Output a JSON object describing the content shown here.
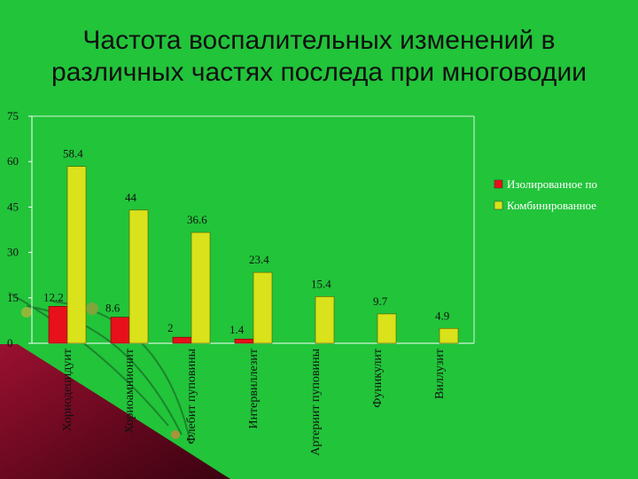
{
  "slide": {
    "title_line1": "Частота воспалительных изменений в",
    "title_line2": "различных частях последа при многоводии"
  },
  "chart_data": {
    "type": "bar",
    "categories": [
      "Хориодецидуит",
      "Хориоамнионит",
      "Флебит пуповины",
      "Интервиллезит",
      "Артериит пуповины",
      "Фуникулит",
      "Виллузит"
    ],
    "series": [
      {
        "name": "Изолированное по",
        "color": "#e8101a",
        "values": [
          12.2,
          8.6,
          2,
          1.4,
          null,
          null,
          null
        ]
      },
      {
        "name": "Комбинированное",
        "color": "#d9e21a",
        "values": [
          58.4,
          44,
          36.6,
          23.4,
          15.4,
          9.7,
          4.9
        ]
      }
    ],
    "ylim": [
      0,
      75
    ],
    "yticks": [
      "0",
      "15",
      "30",
      "45",
      "60",
      "75"
    ],
    "grid": false,
    "legend": "right",
    "xlabel": "",
    "ylabel": ""
  }
}
